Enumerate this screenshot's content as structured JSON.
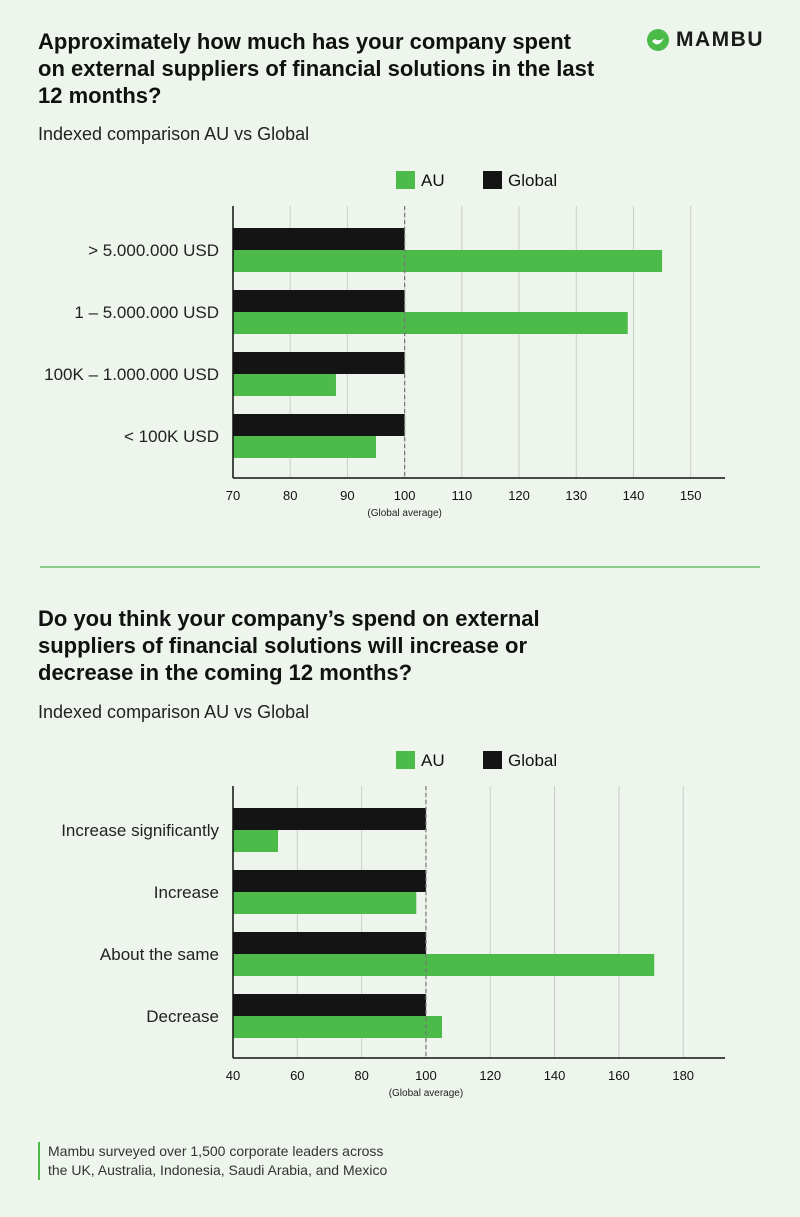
{
  "brand": {
    "name": "MAMBU",
    "color": "#4cbb4a"
  },
  "colors": {
    "au": "#4cbb4a",
    "global": "#141414"
  },
  "section1": {
    "title": "Approximately how much has your company spent on external suppliers of financial solutions in the last 12 months?",
    "subtitle": "Indexed comparison AU vs Global"
  },
  "section2": {
    "title": "Do you think your company’s spend on external suppliers of financial solutions will increase or decrease in the coming 12 months?",
    "subtitle": "Indexed comparison AU vs Global"
  },
  "footer": {
    "line1": "Mambu surveyed over 1,500 corporate leaders across",
    "line2": "the UK, Australia, Indonesia, Saudi Arabia, and Mexico"
  },
  "chart_data": [
    {
      "type": "bar",
      "orientation": "horizontal",
      "title": "Approximately how much has your company spent on external suppliers of financial solutions in the last 12 months?",
      "subtitle": "Indexed comparison AU vs Global",
      "categories": [
        "> 5.000.000 USD",
        "1 – 5.000.000 USD",
        "100K – 1.000.000 USD",
        "< 100K USD"
      ],
      "series": [
        {
          "name": "Global",
          "values": [
            100,
            100,
            100,
            100
          ]
        },
        {
          "name": "AU",
          "values": [
            145,
            139,
            88,
            95
          ]
        }
      ],
      "xlim": [
        70,
        156
      ],
      "xticks": [
        70,
        80,
        90,
        100,
        110,
        120,
        130,
        140,
        150
      ],
      "reference_value": 100,
      "reference_label": "(Global average)",
      "legend": [
        "AU",
        "Global"
      ],
      "legend_position": "top-right",
      "grid": true
    },
    {
      "type": "bar",
      "orientation": "horizontal",
      "title": "Do you think your company’s spend on external suppliers of financial solutions will increase or decrease in the coming 12 months?",
      "subtitle": "Indexed comparison AU vs Global",
      "categories": [
        "Increase significantly",
        "Increase",
        "About the same",
        "Decrease"
      ],
      "series": [
        {
          "name": "Global",
          "values": [
            100,
            100,
            100,
            100
          ]
        },
        {
          "name": "AU",
          "values": [
            54,
            97,
            171,
            105
          ]
        }
      ],
      "xlim": [
        40,
        193
      ],
      "xticks": [
        40,
        60,
        80,
        100,
        120,
        140,
        160,
        180
      ],
      "reference_value": 100,
      "reference_label": "(Global average)",
      "legend": [
        "AU",
        "Global"
      ],
      "legend_position": "top-right",
      "grid": true
    }
  ]
}
